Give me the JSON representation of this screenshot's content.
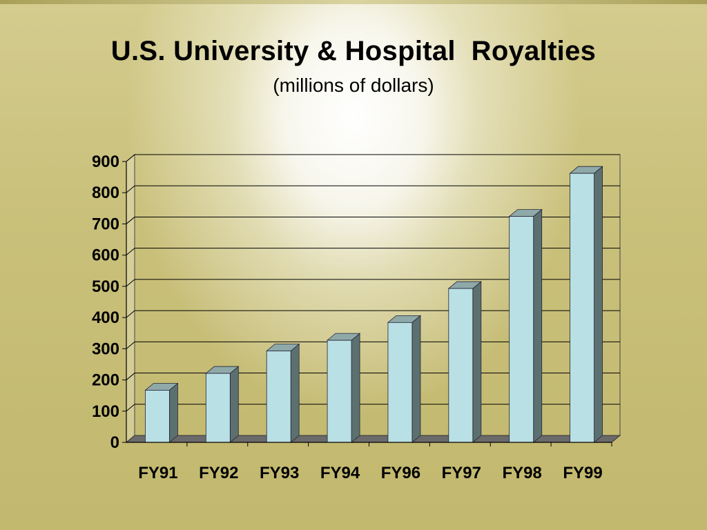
{
  "slide": {
    "title": "U.S. University & Hospital  Royalties",
    "subtitle": "(millions of dollars)"
  },
  "colors": {
    "bar_front": "#b9e0e4",
    "bar_side": "#5c7070",
    "bar_top": "#8fa9a9",
    "floor": "#6a6a6a",
    "grid": "#000000"
  },
  "chart_data": {
    "type": "bar",
    "title": "U.S. University & Hospital  Royalties",
    "subtitle": "(millions of dollars)",
    "categories": [
      "FY91",
      "FY92",
      "FY93",
      "FY94",
      "FY96",
      "FY97",
      "FY98",
      "FY99"
    ],
    "values": [
      167,
      221,
      293,
      327,
      384,
      493,
      724,
      862
    ],
    "ylim": [
      0,
      900
    ],
    "yticks": [
      0,
      100,
      200,
      300,
      400,
      500,
      600,
      700,
      800,
      900
    ],
    "grid": true,
    "style": "3d-column"
  }
}
